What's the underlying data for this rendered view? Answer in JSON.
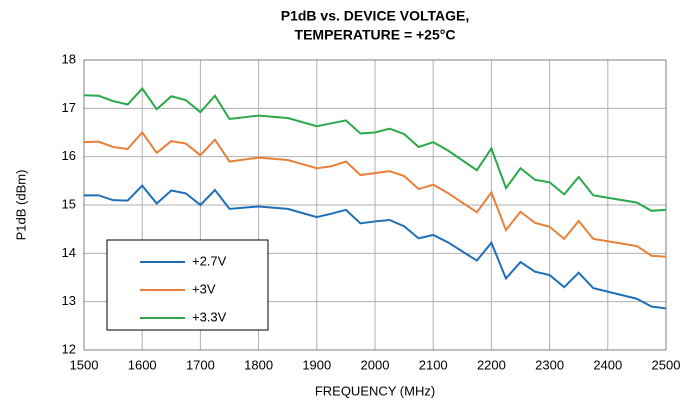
{
  "chart_data": {
    "type": "line",
    "title": [
      "P1dB vs. DEVICE VOLTAGE,",
      "TEMPERATURE = +25°C"
    ],
    "x_label": "FREQUENCY (MHz)",
    "y_label": "P1dB (dBm)",
    "x": [
      1500,
      1525,
      1550,
      1575,
      1600,
      1625,
      1650,
      1675,
      1700,
      1725,
      1750,
      1800,
      1850,
      1900,
      1925,
      1950,
      1975,
      2000,
      2025,
      2050,
      2075,
      2100,
      2125,
      2175,
      2200,
      2225,
      2250,
      2275,
      2300,
      2325,
      2350,
      2375,
      2450,
      2475,
      2500
    ],
    "series": [
      {
        "name": "+2.7V",
        "color": "#1f6fb8",
        "values": [
          15.2,
          15.2,
          15.1,
          15.09,
          15.4,
          15.03,
          15.3,
          15.24,
          15.0,
          15.31,
          14.92,
          14.97,
          14.92,
          14.75,
          14.82,
          14.9,
          14.62,
          14.66,
          14.69,
          14.56,
          14.31,
          14.38,
          14.23,
          13.85,
          14.22,
          13.48,
          13.82,
          13.62,
          13.55,
          13.3,
          13.6,
          13.28,
          13.06,
          12.9,
          12.86
        ]
      },
      {
        "name": "+3V",
        "color": "#e8803a",
        "values": [
          16.3,
          16.31,
          16.2,
          16.16,
          16.5,
          16.08,
          16.32,
          16.27,
          16.03,
          16.35,
          15.9,
          15.98,
          15.93,
          15.76,
          15.8,
          15.9,
          15.62,
          15.66,
          15.7,
          15.6,
          15.33,
          15.42,
          15.25,
          14.85,
          15.26,
          14.48,
          14.86,
          14.63,
          14.55,
          14.3,
          14.67,
          14.3,
          14.15,
          13.95,
          13.93
        ]
      },
      {
        "name": "+3.3V",
        "color": "#2aa84a",
        "values": [
          17.27,
          17.26,
          17.15,
          17.08,
          17.41,
          16.98,
          17.25,
          17.17,
          16.92,
          17.26,
          16.78,
          16.85,
          16.8,
          16.63,
          16.69,
          16.75,
          16.48,
          16.5,
          16.58,
          16.47,
          16.2,
          16.3,
          16.13,
          15.72,
          16.17,
          15.35,
          15.76,
          15.52,
          15.47,
          15.22,
          15.58,
          15.2,
          15.05,
          14.88,
          14.9
        ]
      }
    ],
    "xlim": [
      1500,
      2500
    ],
    "xticks": [
      1500,
      1600,
      1700,
      1800,
      1900,
      2000,
      2100,
      2200,
      2300,
      2400,
      2500
    ],
    "ylim": [
      12,
      18
    ],
    "yticks": [
      12,
      13,
      14,
      15,
      16,
      17,
      18
    ],
    "grid": true,
    "legend": "lower left"
  }
}
